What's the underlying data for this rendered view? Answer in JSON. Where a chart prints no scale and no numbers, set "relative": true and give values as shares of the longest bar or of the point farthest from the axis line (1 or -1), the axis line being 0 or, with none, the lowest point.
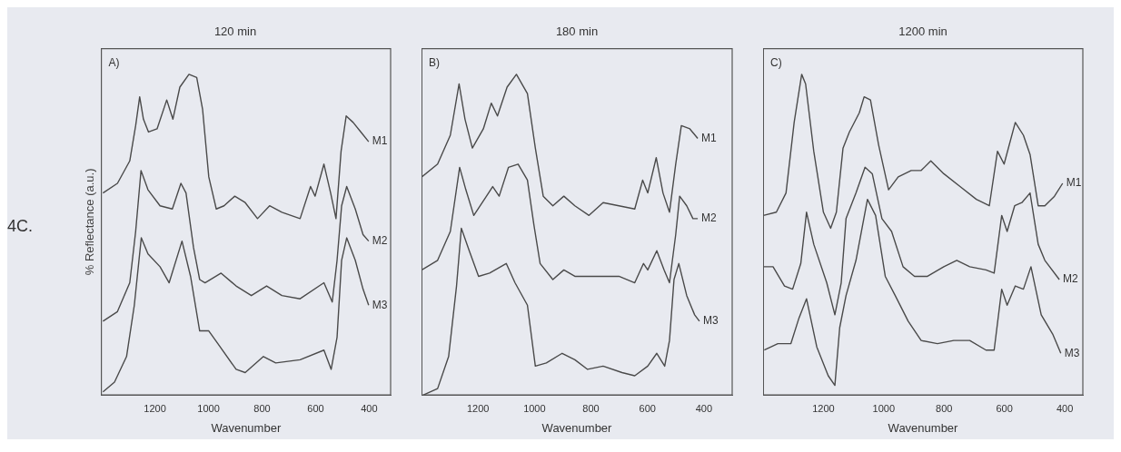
{
  "chart_data": [
    {
      "type": "line",
      "title": "120 min",
      "xlabel": "Wavenumber",
      "ylabel": "% Reflectance (a.u.)",
      "relative": true,
      "tick_labels": "x",
      "xlim": [
        1400,
        320
      ],
      "xticks": [
        1200,
        1000,
        800,
        600,
        400
      ],
      "annotations": [
        "4C.",
        "A)"
      ],
      "series": [
        {
          "name": "M1",
          "color": "#4a4a4a",
          "x": [
            1394,
            1340,
            1294,
            1272,
            1257,
            1243,
            1224,
            1192,
            1156,
            1133,
            1107,
            1073,
            1044,
            1022,
            999,
            971,
            942,
            902,
            863,
            817,
            772,
            726,
            658,
            619,
            602,
            569,
            544,
            524,
            505,
            486,
            460,
            431,
            402
          ],
          "values": [
            0.63,
            0.66,
            0.73,
            0.84,
            0.93,
            0.86,
            0.82,
            0.83,
            0.92,
            0.86,
            0.96,
            1.0,
            0.99,
            0.89,
            0.68,
            0.58,
            0.59,
            0.62,
            0.6,
            0.55,
            0.59,
            0.57,
            0.55,
            0.65,
            0.62,
            0.72,
            0.63,
            0.55,
            0.76,
            0.87,
            0.85,
            0.82,
            0.79
          ]
        },
        {
          "name": "M2",
          "color": "#4a4a4a",
          "x": [
            1394,
            1340,
            1294,
            1272,
            1252,
            1226,
            1181,
            1135,
            1103,
            1084,
            1056,
            1033,
            1013,
            953,
            897,
            840,
            783,
            726,
            658,
            569,
            538,
            520,
            503,
            484,
            452,
            423,
            402
          ],
          "values": [
            0.23,
            0.26,
            0.35,
            0.51,
            0.7,
            0.64,
            0.59,
            0.58,
            0.66,
            0.63,
            0.46,
            0.36,
            0.35,
            0.38,
            0.34,
            0.31,
            0.34,
            0.31,
            0.3,
            0.35,
            0.29,
            0.42,
            0.59,
            0.65,
            0.58,
            0.5,
            0.48
          ]
        },
        {
          "name": "M3",
          "color": "#4a4a4a",
          "x": [
            1394,
            1351,
            1306,
            1277,
            1251,
            1226,
            1181,
            1147,
            1099,
            1067,
            1033,
            999,
            965,
            897,
            863,
            795,
            749,
            658,
            569,
            542,
            520,
            503,
            484,
            452,
            423,
            402
          ],
          "values": [
            0.01,
            0.04,
            0.12,
            0.28,
            0.49,
            0.44,
            0.4,
            0.35,
            0.48,
            0.37,
            0.2,
            0.2,
            0.16,
            0.08,
            0.07,
            0.12,
            0.1,
            0.11,
            0.14,
            0.08,
            0.18,
            0.42,
            0.49,
            0.42,
            0.33,
            0.28
          ]
        }
      ]
    },
    {
      "type": "line",
      "title": "180 min",
      "xlabel": "Wavenumber",
      "relative": true,
      "tick_labels": "x",
      "xlim": [
        1400,
        300
      ],
      "xticks": [
        1200,
        1000,
        800,
        600,
        400
      ],
      "annotations": [
        "B)"
      ],
      "series": [
        {
          "name": "M1",
          "color": "#4a4a4a",
          "x": [
            1399,
            1343,
            1298,
            1267,
            1246,
            1220,
            1181,
            1153,
            1131,
            1097,
            1064,
            1025,
            997,
            969,
            935,
            896,
            857,
            807,
            757,
            701,
            645,
            617,
            599,
            569,
            545,
            522,
            500,
            480,
            450,
            422
          ],
          "values": [
            0.68,
            0.72,
            0.81,
            0.97,
            0.86,
            0.77,
            0.83,
            0.91,
            0.87,
            0.96,
            1.0,
            0.94,
            0.77,
            0.62,
            0.59,
            0.62,
            0.59,
            0.56,
            0.6,
            0.59,
            0.58,
            0.67,
            0.63,
            0.74,
            0.63,
            0.57,
            0.72,
            0.84,
            0.83,
            0.8
          ]
        },
        {
          "name": "M2",
          "color": "#4a4a4a",
          "x": [
            1399,
            1343,
            1298,
            1265,
            1243,
            1215,
            1170,
            1148,
            1125,
            1092,
            1058,
            1025,
            1002,
            980,
            935,
            896,
            857,
            802,
            757,
            701,
            645,
            614,
            599,
            567,
            541,
            522,
            500,
            486,
            461,
            439,
            422
          ],
          "values": [
            0.39,
            0.42,
            0.51,
            0.71,
            0.64,
            0.56,
            0.62,
            0.65,
            0.62,
            0.71,
            0.72,
            0.67,
            0.53,
            0.41,
            0.36,
            0.39,
            0.37,
            0.37,
            0.37,
            0.37,
            0.35,
            0.41,
            0.39,
            0.45,
            0.39,
            0.35,
            0.5,
            0.62,
            0.59,
            0.55,
            0.55
          ]
        },
        {
          "name": "M3",
          "color": "#4a4a4a",
          "x": [
            1393,
            1343,
            1304,
            1276,
            1259,
            1231,
            1198,
            1159,
            1100,
            1069,
            1025,
            997,
            958,
            902,
            857,
            812,
            757,
            690,
            645,
            599,
            567,
            539,
            522,
            506,
            489,
            461,
            433,
            416
          ],
          "values": [
            0.0,
            0.02,
            0.12,
            0.34,
            0.52,
            0.45,
            0.37,
            0.38,
            0.41,
            0.35,
            0.28,
            0.09,
            0.1,
            0.13,
            0.11,
            0.08,
            0.09,
            0.07,
            0.06,
            0.09,
            0.13,
            0.09,
            0.17,
            0.36,
            0.41,
            0.31,
            0.25,
            0.23
          ]
        }
      ]
    },
    {
      "type": "line",
      "title": "1200 min",
      "xlabel": "Wavenumber",
      "relative": true,
      "tick_labels": "x",
      "xlim": [
        1400,
        340
      ],
      "xticks": [
        1200,
        1000,
        800,
        600,
        400
      ],
      "annotations": [
        "C)"
      ],
      "series": [
        {
          "name": "M1",
          "color": "#4a4a4a",
          "x": [
            1399,
            1356,
            1324,
            1297,
            1272,
            1259,
            1232,
            1200,
            1176,
            1157,
            1135,
            1114,
            1081,
            1065,
            1044,
            1017,
            984,
            952,
            909,
            876,
            844,
            801,
            747,
            693,
            650,
            623,
            601,
            564,
            537,
            515,
            488,
            466,
            434,
            407
          ],
          "values": [
            0.56,
            0.57,
            0.63,
            0.85,
            1.0,
            0.97,
            0.76,
            0.57,
            0.52,
            0.57,
            0.77,
            0.82,
            0.88,
            0.93,
            0.92,
            0.78,
            0.64,
            0.68,
            0.7,
            0.7,
            0.73,
            0.69,
            0.65,
            0.61,
            0.59,
            0.76,
            0.72,
            0.85,
            0.81,
            0.75,
            0.59,
            0.59,
            0.62,
            0.66
          ]
        },
        {
          "name": "M2",
          "color": "#4a4a4a",
          "x": [
            1399,
            1367,
            1329,
            1302,
            1275,
            1256,
            1232,
            1189,
            1162,
            1141,
            1125,
            1092,
            1062,
            1038,
            1006,
            974,
            936,
            898,
            855,
            801,
            758,
            715,
            661,
            634,
            609,
            591,
            566,
            542,
            515,
            488,
            466,
            418
          ],
          "values": [
            0.4,
            0.4,
            0.34,
            0.33,
            0.41,
            0.57,
            0.47,
            0.35,
            0.25,
            0.35,
            0.55,
            0.63,
            0.71,
            0.69,
            0.55,
            0.51,
            0.4,
            0.37,
            0.37,
            0.4,
            0.42,
            0.4,
            0.39,
            0.38,
            0.56,
            0.51,
            0.59,
            0.6,
            0.63,
            0.47,
            0.42,
            0.36
          ]
        },
        {
          "name": "M3",
          "color": "#4a4a4a",
          "x": [
            1396,
            1351,
            1308,
            1281,
            1256,
            1222,
            1184,
            1162,
            1146,
            1125,
            1092,
            1054,
            1027,
            995,
            962,
            919,
            876,
            822,
            768,
            715,
            661,
            634,
            609,
            591,
            564,
            537,
            512,
            478,
            440,
            413
          ],
          "values": [
            0.14,
            0.16,
            0.16,
            0.24,
            0.3,
            0.15,
            0.06,
            0.03,
            0.21,
            0.31,
            0.42,
            0.61,
            0.56,
            0.37,
            0.31,
            0.23,
            0.17,
            0.16,
            0.17,
            0.17,
            0.14,
            0.14,
            0.33,
            0.28,
            0.34,
            0.33,
            0.4,
            0.25,
            0.19,
            0.13
          ]
        }
      ]
    }
  ]
}
